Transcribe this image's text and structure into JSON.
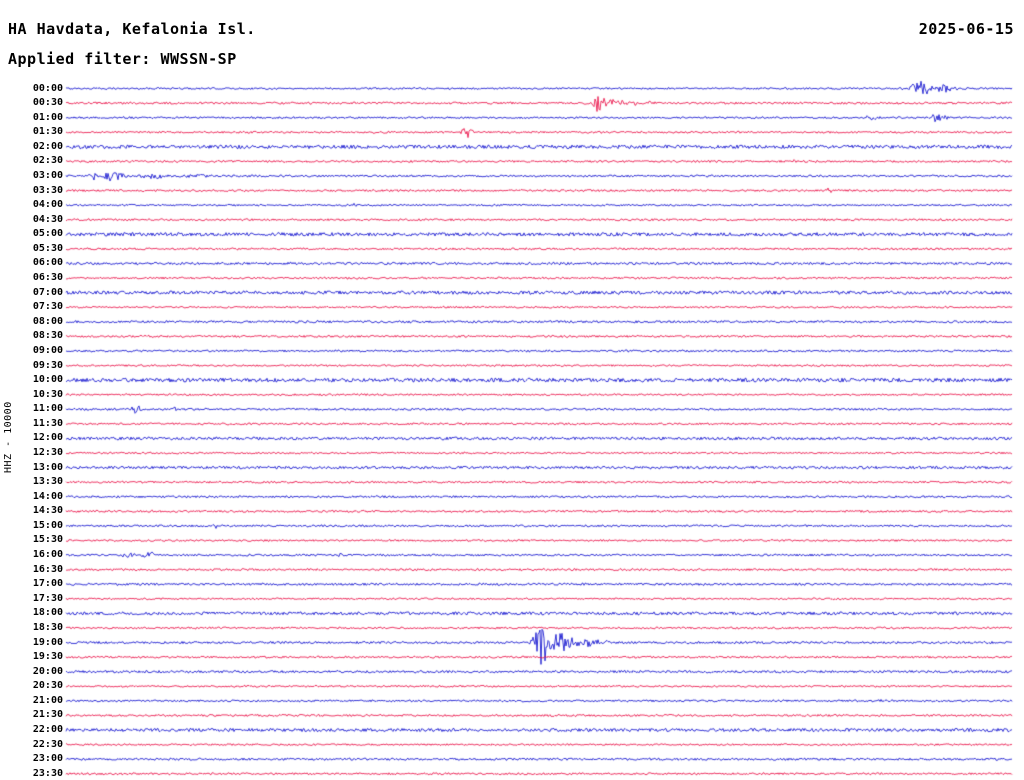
{
  "header": {
    "station": "HA Havdata, Kefalonia Isl.",
    "date": "2025-06-15",
    "filter_label": "Applied filter: WWSSN-SP"
  },
  "axis": {
    "left_label": "HHZ - 10000"
  },
  "chart_data": {
    "type": "line",
    "subtype": "helicorder-seismogram",
    "title": "HA Havdata, Kefalonia Isl.",
    "date": "2025-06-15",
    "filter": "WWSSN-SP",
    "ylabel": "HHZ - 10000",
    "minutes_per_row": 30,
    "rows_count": 48,
    "legend": "none",
    "grid": false,
    "colors": {
      "blue": "#0000cc",
      "red": "#e8003c"
    },
    "rows": [
      {
        "time": "00:00",
        "color": "blue",
        "noise": 0.9,
        "events": [
          {
            "p": 0.099,
            "a": 1.8,
            "w": 0.002
          },
          {
            "p": 0.903,
            "a": 7,
            "w": 0.008
          },
          {
            "p": 0.925,
            "a": 4,
            "w": 0.01
          }
        ]
      },
      {
        "time": "00:30",
        "color": "red",
        "noise": 1.1,
        "events": [
          {
            "p": 0.563,
            "a": 9,
            "w": 0.004
          },
          {
            "p": 0.578,
            "a": 4,
            "w": 0.01
          },
          {
            "p": 0.6,
            "a": 1.5,
            "w": 0.015
          }
        ]
      },
      {
        "time": "01:00",
        "color": "blue",
        "noise": 0.9,
        "events": [
          {
            "p": 0.852,
            "a": 3,
            "w": 0.004
          },
          {
            "p": 0.922,
            "a": 4.5,
            "w": 0.007
          }
        ]
      },
      {
        "time": "01:30",
        "color": "red",
        "noise": 1.0,
        "events": [
          {
            "p": 0.424,
            "a": 6.5,
            "w": 0.004
          }
        ]
      },
      {
        "time": "02:00",
        "color": "blue",
        "noise": 1.8,
        "events": []
      },
      {
        "time": "02:30",
        "color": "red",
        "noise": 1.0,
        "events": [
          {
            "p": 0.771,
            "a": 1.6,
            "w": 0.002
          }
        ]
      },
      {
        "time": "03:00",
        "color": "blue",
        "noise": 1.0,
        "events": [
          {
            "p": 0.03,
            "a": 4,
            "w": 0.004
          },
          {
            "p": 0.05,
            "a": 6.5,
            "w": 0.008
          },
          {
            "p": 0.09,
            "a": 2.5,
            "w": 0.012
          },
          {
            "p": 0.14,
            "a": 1.2,
            "w": 0.01
          }
        ]
      },
      {
        "time": "03:30",
        "color": "red",
        "noise": 1.0,
        "events": [
          {
            "p": 0.808,
            "a": 2.6,
            "w": 0.003
          }
        ]
      },
      {
        "time": "04:00",
        "color": "blue",
        "noise": 0.9,
        "events": [
          {
            "p": 0.306,
            "a": 2.6,
            "w": 0.002
          }
        ]
      },
      {
        "time": "04:30",
        "color": "red",
        "noise": 1.0,
        "events": []
      },
      {
        "time": "05:00",
        "color": "blue",
        "noise": 1.7,
        "events": []
      },
      {
        "time": "05:30",
        "color": "red",
        "noise": 1.0,
        "events": []
      },
      {
        "time": "06:00",
        "color": "blue",
        "noise": 1.2,
        "events": []
      },
      {
        "time": "06:30",
        "color": "red",
        "noise": 1.0,
        "events": []
      },
      {
        "time": "07:00",
        "color": "blue",
        "noise": 1.7,
        "events": []
      },
      {
        "time": "07:30",
        "color": "red",
        "noise": 0.9,
        "events": []
      },
      {
        "time": "08:00",
        "color": "blue",
        "noise": 1.1,
        "events": [
          {
            "p": 0.266,
            "a": 1.8,
            "w": 0.002
          }
        ]
      },
      {
        "time": "08:30",
        "color": "red",
        "noise": 1.0,
        "events": []
      },
      {
        "time": "09:00",
        "color": "blue",
        "noise": 1.0,
        "events": []
      },
      {
        "time": "09:30",
        "color": "red",
        "noise": 0.9,
        "events": []
      },
      {
        "time": "10:00",
        "color": "blue",
        "noise": 1.9,
        "events": []
      },
      {
        "time": "10:30",
        "color": "red",
        "noise": 0.9,
        "events": []
      },
      {
        "time": "11:00",
        "color": "blue",
        "noise": 1.0,
        "events": [
          {
            "p": 0.074,
            "a": 4.5,
            "w": 0.004
          },
          {
            "p": 0.115,
            "a": 1.6,
            "w": 0.002
          }
        ]
      },
      {
        "time": "11:30",
        "color": "red",
        "noise": 1.0,
        "events": []
      },
      {
        "time": "12:00",
        "color": "blue",
        "noise": 1.4,
        "events": [
          {
            "p": 0.776,
            "a": 1.5,
            "w": 0.002
          }
        ]
      },
      {
        "time": "12:30",
        "color": "red",
        "noise": 0.9,
        "events": []
      },
      {
        "time": "13:00",
        "color": "blue",
        "noise": 1.3,
        "events": []
      },
      {
        "time": "13:30",
        "color": "red",
        "noise": 1.0,
        "events": []
      },
      {
        "time": "14:00",
        "color": "blue",
        "noise": 1.0,
        "events": []
      },
      {
        "time": "14:30",
        "color": "red",
        "noise": 1.0,
        "events": [
          {
            "p": 0.089,
            "a": 2.2,
            "w": 0.002
          }
        ]
      },
      {
        "time": "15:00",
        "color": "blue",
        "noise": 1.0,
        "events": [
          {
            "p": 0.157,
            "a": 2.6,
            "w": 0.002
          }
        ]
      },
      {
        "time": "15:30",
        "color": "red",
        "noise": 0.9,
        "events": []
      },
      {
        "time": "16:00",
        "color": "blue",
        "noise": 1.0,
        "events": [
          {
            "p": 0.066,
            "a": 3.2,
            "w": 0.004
          },
          {
            "p": 0.089,
            "a": 2.6,
            "w": 0.007
          },
          {
            "p": 0.29,
            "a": 1.6,
            "w": 0.002
          }
        ]
      },
      {
        "time": "16:30",
        "color": "red",
        "noise": 1.0,
        "events": []
      },
      {
        "time": "17:00",
        "color": "blue",
        "noise": 1.1,
        "events": []
      },
      {
        "time": "17:30",
        "color": "red",
        "noise": 0.9,
        "events": []
      },
      {
        "time": "18:00",
        "color": "blue",
        "noise": 1.5,
        "events": []
      },
      {
        "time": "18:30",
        "color": "red",
        "noise": 1.0,
        "events": []
      },
      {
        "time": "19:00",
        "color": "blue",
        "noise": 1.1,
        "events": [
          {
            "p": 0.503,
            "a": 24,
            "w": 0.006
          },
          {
            "p": 0.52,
            "a": 12,
            "w": 0.01
          },
          {
            "p": 0.545,
            "a": 5,
            "w": 0.012
          },
          {
            "p": 0.57,
            "a": 2,
            "w": 0.012
          }
        ]
      },
      {
        "time": "19:30",
        "color": "red",
        "noise": 1.0,
        "events": []
      },
      {
        "time": "20:00",
        "color": "blue",
        "noise": 1.2,
        "events": []
      },
      {
        "time": "20:30",
        "color": "red",
        "noise": 0.9,
        "events": []
      },
      {
        "time": "21:00",
        "color": "blue",
        "noise": 1.0,
        "events": [
          {
            "p": 0.86,
            "a": 1.4,
            "w": 0.002
          }
        ]
      },
      {
        "time": "21:30",
        "color": "red",
        "noise": 1.0,
        "events": []
      },
      {
        "time": "22:00",
        "color": "blue",
        "noise": 1.6,
        "events": []
      },
      {
        "time": "22:30",
        "color": "red",
        "noise": 0.9,
        "events": []
      },
      {
        "time": "23:00",
        "color": "blue",
        "noise": 1.1,
        "events": []
      },
      {
        "time": "23:30",
        "color": "red",
        "noise": 1.0,
        "events": []
      }
    ]
  }
}
